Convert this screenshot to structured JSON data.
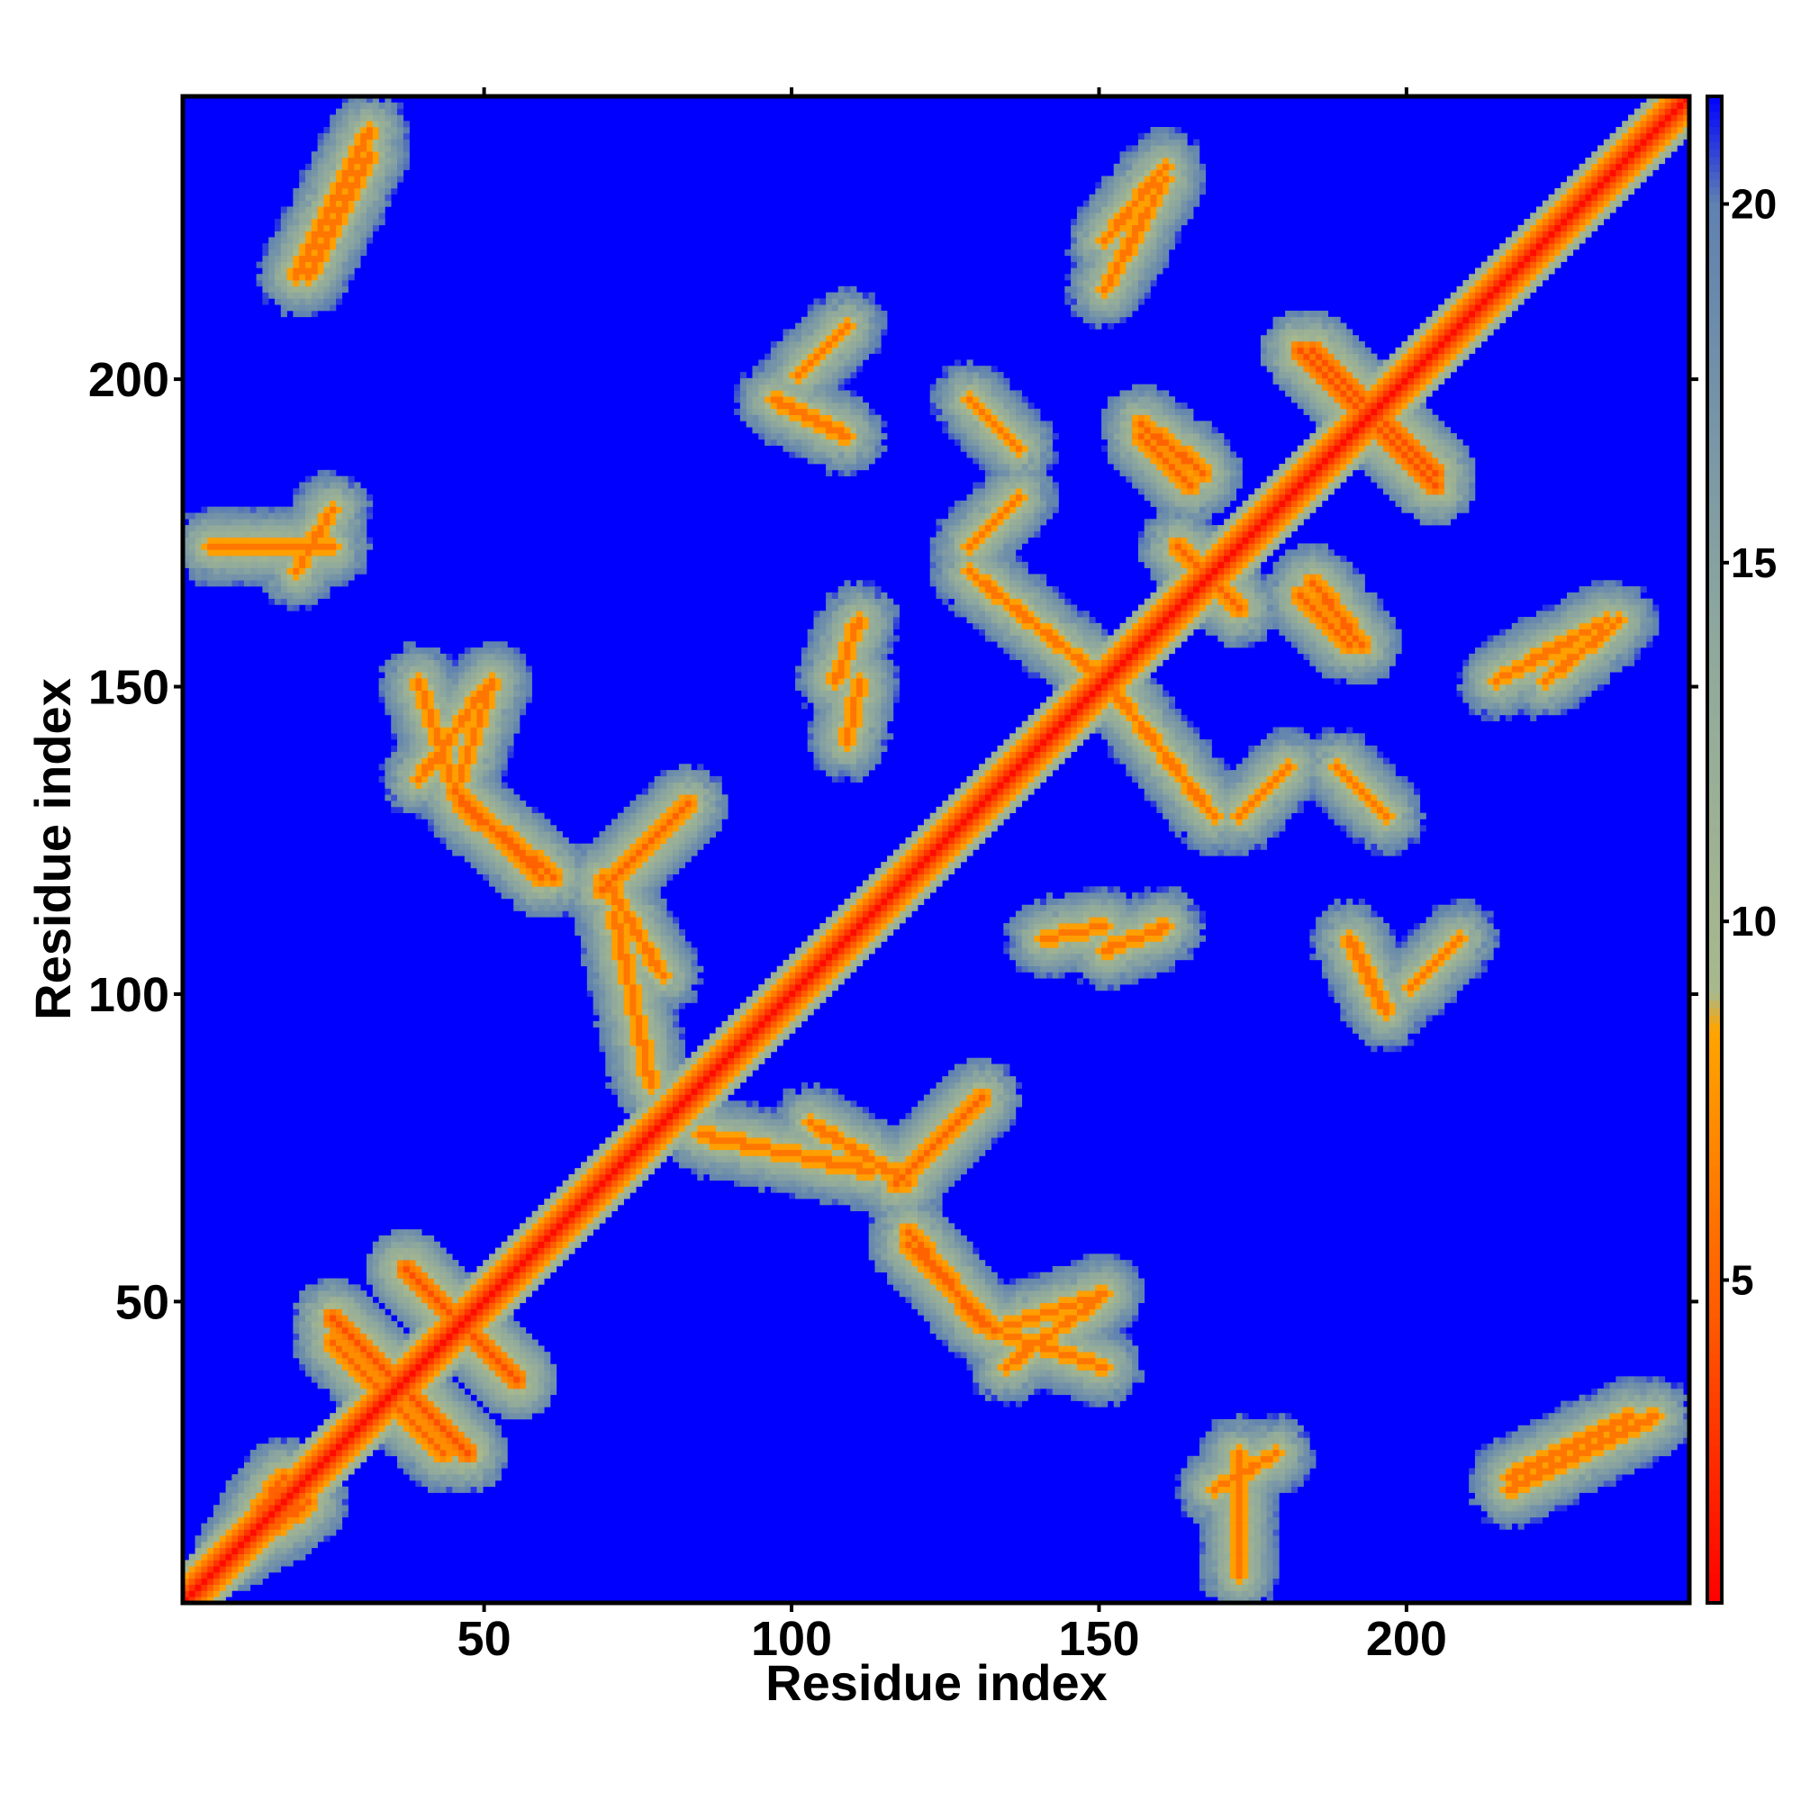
{
  "chart_data": {
    "type": "heatmap",
    "title": "",
    "xlabel": "Residue index",
    "ylabel": "Residue index",
    "xlim": [
      1,
      246
    ],
    "ylim": [
      1,
      246
    ],
    "n_residues": 246,
    "x_ticks": [
      50,
      100,
      150,
      200
    ],
    "y_ticks": [
      50,
      100,
      150,
      200
    ],
    "colorbar": {
      "range": [
        0.5,
        21.5
      ],
      "ticks": [
        5,
        10,
        15,
        20
      ],
      "stops": [
        {
          "value": 0.5,
          "color": "#ff0000"
        },
        {
          "value": 4.5,
          "color": "#ff5a00"
        },
        {
          "value": 8.5,
          "color": "#ffa500"
        },
        {
          "value": 9.0,
          "color": "#a8b98c"
        },
        {
          "value": 14.0,
          "color": "#8ea89e"
        },
        {
          "value": 20.0,
          "color": "#5f82b0"
        },
        {
          "value": 21.5,
          "color": "#0000ff"
        }
      ],
      "background_color": "#0000ff"
    },
    "grid": false,
    "description_of_values": "Symmetric residue-residue distance map; low distance = red/orange, mid = green-grey, high = blue. Visible features: main diagonal band, crossing bands near (40,40), loop structures around (45,135), (120,60), (150,145), (185,185).",
    "features": [
      {
        "kind": "diagonal",
        "value": 1
      },
      {
        "kind": "band",
        "from": [
          24,
          46
        ],
        "to": [
          42,
          28
        ],
        "value": 4
      },
      {
        "kind": "band",
        "from": [
          36,
          54
        ],
        "to": [
          54,
          36
        ],
        "value": 4
      },
      {
        "kind": "band",
        "from": [
          30,
          36
        ],
        "to": [
          42,
          24
        ],
        "value": 5
      },
      {
        "kind": "band",
        "from": [
          44,
          132
        ],
        "to": [
          58,
          118
        ],
        "value": 5
      },
      {
        "kind": "band",
        "from": [
          38,
          150
        ],
        "to": [
          44,
          132
        ],
        "value": 6
      },
      {
        "kind": "band",
        "from": [
          50,
          150
        ],
        "to": [
          44,
          132
        ],
        "value": 6
      },
      {
        "kind": "band",
        "from": [
          68,
          116
        ],
        "to": [
          82,
          130
        ],
        "value": 5
      },
      {
        "kind": "band",
        "from": [
          70,
          112
        ],
        "to": [
          76,
          84
        ],
        "value": 6
      },
      {
        "kind": "band",
        "from": [
          118,
          60
        ],
        "to": [
          130,
          45
        ],
        "value": 5
      },
      {
        "kind": "band",
        "from": [
          118,
          70
        ],
        "to": [
          128,
          80
        ],
        "value": 5
      },
      {
        "kind": "band",
        "from": [
          134,
          38
        ],
        "to": [
          150,
          50
        ],
        "value": 6
      },
      {
        "kind": "band",
        "from": [
          102,
          78
        ],
        "to": [
          118,
          68
        ],
        "value": 6
      },
      {
        "kind": "band",
        "from": [
          156,
          190
        ],
        "to": [
          164,
          182
        ],
        "value": 5
      },
      {
        "kind": "band",
        "from": [
          184,
          204
        ],
        "to": [
          198,
          190
        ],
        "value": 4
      },
      {
        "kind": "band",
        "from": [
          190,
          196
        ],
        "to": [
          204,
          182
        ],
        "value": 4
      },
      {
        "kind": "band",
        "from": [
          184,
          166
        ],
        "to": [
          192,
          156
        ],
        "value": 5
      },
      {
        "kind": "band",
        "from": [
          164,
          170
        ],
        "to": [
          172,
          162
        ],
        "value": 5
      },
      {
        "kind": "band",
        "from": [
          128,
          168
        ],
        "to": [
          150,
          150
        ],
        "value": 6
      },
      {
        "kind": "band",
        "from": [
          140,
          108
        ],
        "to": [
          150,
          110
        ],
        "value": 6
      },
      {
        "kind": "band",
        "from": [
          8,
          8
        ],
        "to": [
          20,
          16
        ],
        "value": 5
      },
      {
        "kind": "band",
        "from": [
          20,
          216
        ],
        "to": [
          30,
          236
        ],
        "value": 6
      },
      {
        "kind": "band",
        "from": [
          216,
          18
        ],
        "to": [
          240,
          30
        ],
        "value": 6
      },
      {
        "kind": "band",
        "from": [
          168,
          18
        ],
        "to": [
          178,
          24
        ],
        "value": 6
      },
      {
        "kind": "band",
        "from": [
          4,
          172
        ],
        "to": [
          24,
          172
        ],
        "value": 6
      },
      {
        "kind": "band",
        "from": [
          106,
          150
        ],
        "to": [
          110,
          160
        ],
        "value": 6
      },
      {
        "kind": "band",
        "from": [
          150,
          222
        ],
        "to": [
          160,
          234
        ],
        "value": 6
      },
      {
        "kind": "band",
        "from": [
          214,
          150
        ],
        "to": [
          232,
          160
        ],
        "value": 6
      },
      {
        "kind": "band",
        "from": [
          200,
          100
        ],
        "to": [
          208,
          108
        ],
        "value": 6
      },
      {
        "kind": "band",
        "from": [
          96,
          196
        ],
        "to": [
          108,
          190
        ],
        "value": 6
      },
      {
        "kind": "band",
        "from": [
          128,
          196
        ],
        "to": [
          136,
          188
        ],
        "value": 6
      },
      {
        "kind": "band",
        "from": [
          172,
          128
        ],
        "to": [
          180,
          136
        ],
        "value": 6
      }
    ]
  }
}
